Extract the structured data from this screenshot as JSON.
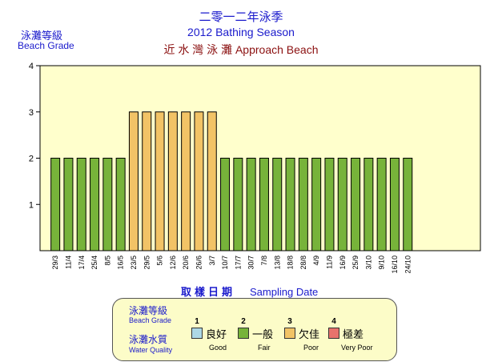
{
  "title_cn": "二零一二年泳季",
  "title_en": "2012 Bathing Season",
  "beach_name": "近 水 灣 泳 灘   Approach Beach",
  "y_label_cn": "泳灘等級",
  "y_label_en": "Beach Grade",
  "x_label_cn": "取樣日期",
  "x_label_en": "Sampling Date",
  "colors": {
    "fair": "#77b33a",
    "poor": "#f2c366",
    "good": "#add8e6",
    "very_poor": "#e8726c",
    "plot_bg": "#ffffcc",
    "title": "#1a1acc",
    "beach": "#8b1010"
  },
  "legend": {
    "grade_label_cn": "泳灘等級",
    "grade_label_en": "Beach Grade",
    "quality_label_cn": "泳灘水質",
    "quality_label_en": "Water Quality",
    "items": [
      {
        "grade": "1",
        "cn": "良好",
        "en": "Good",
        "color": "#add8e6"
      },
      {
        "grade": "2",
        "cn": "一般",
        "en": "Fair",
        "color": "#77b33a"
      },
      {
        "grade": "3",
        "cn": "欠佳",
        "en": "Poor",
        "color": "#f2c366"
      },
      {
        "grade": "4",
        "cn": "極差",
        "en": "Very Poor",
        "color": "#e8726c"
      }
    ]
  },
  "chart_data": {
    "type": "bar",
    "categories": [
      "29/3",
      "11/4",
      "17/4",
      "25/4",
      "8/5",
      "16/5",
      "23/5",
      "29/5",
      "5/6",
      "12/6",
      "20/6",
      "26/6",
      "3/7",
      "10/7",
      "17/7",
      "30/7",
      "7/8",
      "13/8",
      "18/8",
      "28/8",
      "4/9",
      "11/9",
      "16/9",
      "25/9",
      "3/10",
      "9/10",
      "16/10",
      "24/10"
    ],
    "values": [
      2,
      2,
      2,
      2,
      2,
      2,
      3,
      3,
      3,
      3,
      3,
      3,
      3,
      2,
      2,
      2,
      2,
      2,
      2,
      2,
      2,
      2,
      2,
      2,
      2,
      2,
      2,
      2
    ],
    "ylim": [
      0,
      4
    ],
    "yticks": [
      1,
      2,
      3,
      4
    ],
    "grid": false,
    "legend_position": "bottom"
  }
}
